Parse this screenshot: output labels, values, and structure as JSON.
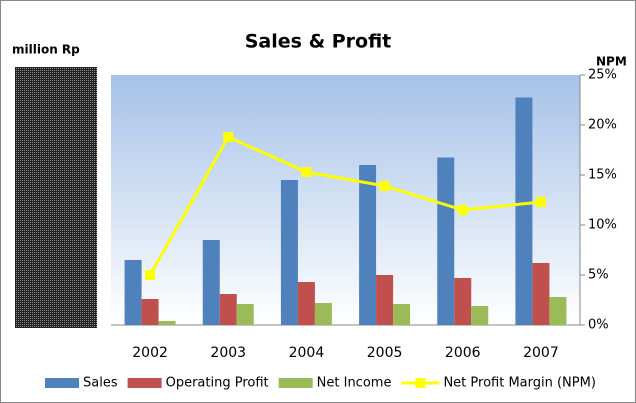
{
  "chart_data": {
    "type": "bar",
    "title": "Sales & Profit",
    "ylabel": "million Rp",
    "y2label": "NPM",
    "categories": [
      "2002",
      "2003",
      "2004",
      "2005",
      "2006",
      "2007"
    ],
    "ylim": [
      0,
      100
    ],
    "y2lim": [
      0,
      25
    ],
    "y2ticks": [
      {
        "value": 0,
        "label": "0%"
      },
      {
        "value": 5,
        "label": "5%"
      },
      {
        "value": 10,
        "label": "10%"
      },
      {
        "value": 15,
        "label": "15%"
      },
      {
        "value": 20,
        "label": "20%"
      },
      {
        "value": 25,
        "label": "25%"
      }
    ],
    "series": [
      {
        "name": "Sales",
        "color": "#4f81bd",
        "values": [
          26,
          34,
          58,
          64,
          67,
          91
        ]
      },
      {
        "name": "Operating Profit",
        "color": "#c0504d",
        "values": [
          10.4,
          12.4,
          17.2,
          20,
          18.8,
          24.8
        ]
      },
      {
        "name": "Net Income",
        "color": "#9bbb59",
        "values": [
          1.6,
          8.4,
          8.8,
          8.4,
          7.6,
          11.2
        ]
      },
      {
        "name": "Net Profit Margin (NPM)",
        "color": "#ffff00",
        "type": "line",
        "axis": "y2",
        "values": [
          5.0,
          18.8,
          15.3,
          13.9,
          11.5,
          12.3
        ]
      }
    ]
  }
}
